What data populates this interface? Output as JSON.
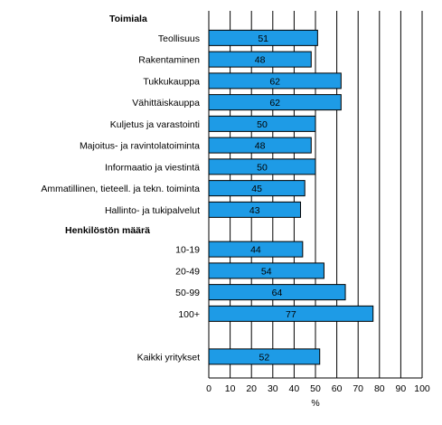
{
  "chart_data": {
    "type": "bar",
    "orientation": "horizontal",
    "xlabel": "%",
    "xlim": [
      0,
      100
    ],
    "xticks": [
      0,
      10,
      20,
      30,
      40,
      50,
      60,
      70,
      80,
      90,
      100
    ],
    "grid": "vertical",
    "bar_color": "#1E9BE6",
    "groups": [
      {
        "title": "Toimiala",
        "rows": [
          {
            "label": "Teollisuus",
            "value": 51
          },
          {
            "label": "Rakentaminen",
            "value": 48
          },
          {
            "label": "Tukkukauppa",
            "value": 62
          },
          {
            "label": "Vähittäiskauppa",
            "value": 62
          },
          {
            "label": "Kuljetus ja varastointi",
            "value": 50
          },
          {
            "label": "Majoitus- ja ravintolatoiminta",
            "value": 48
          },
          {
            "label": "Informaatio ja viestintä",
            "value": 50
          },
          {
            "label": "Ammatillinen, tieteell. ja tekn. toiminta",
            "value": 45
          },
          {
            "label": "Hallinto- ja tukipalvelut",
            "value": 43
          }
        ]
      },
      {
        "title": "Henkilöstön määrä",
        "rows": [
          {
            "label": "10-19",
            "value": 44
          },
          {
            "label": "20-49",
            "value": 54
          },
          {
            "label": "50-99",
            "value": 64
          },
          {
            "label": "100+",
            "value": 77
          }
        ]
      },
      {
        "title": "",
        "rows": [
          {
            "label": "Kaikki yritykset",
            "value": 52
          }
        ]
      }
    ]
  }
}
